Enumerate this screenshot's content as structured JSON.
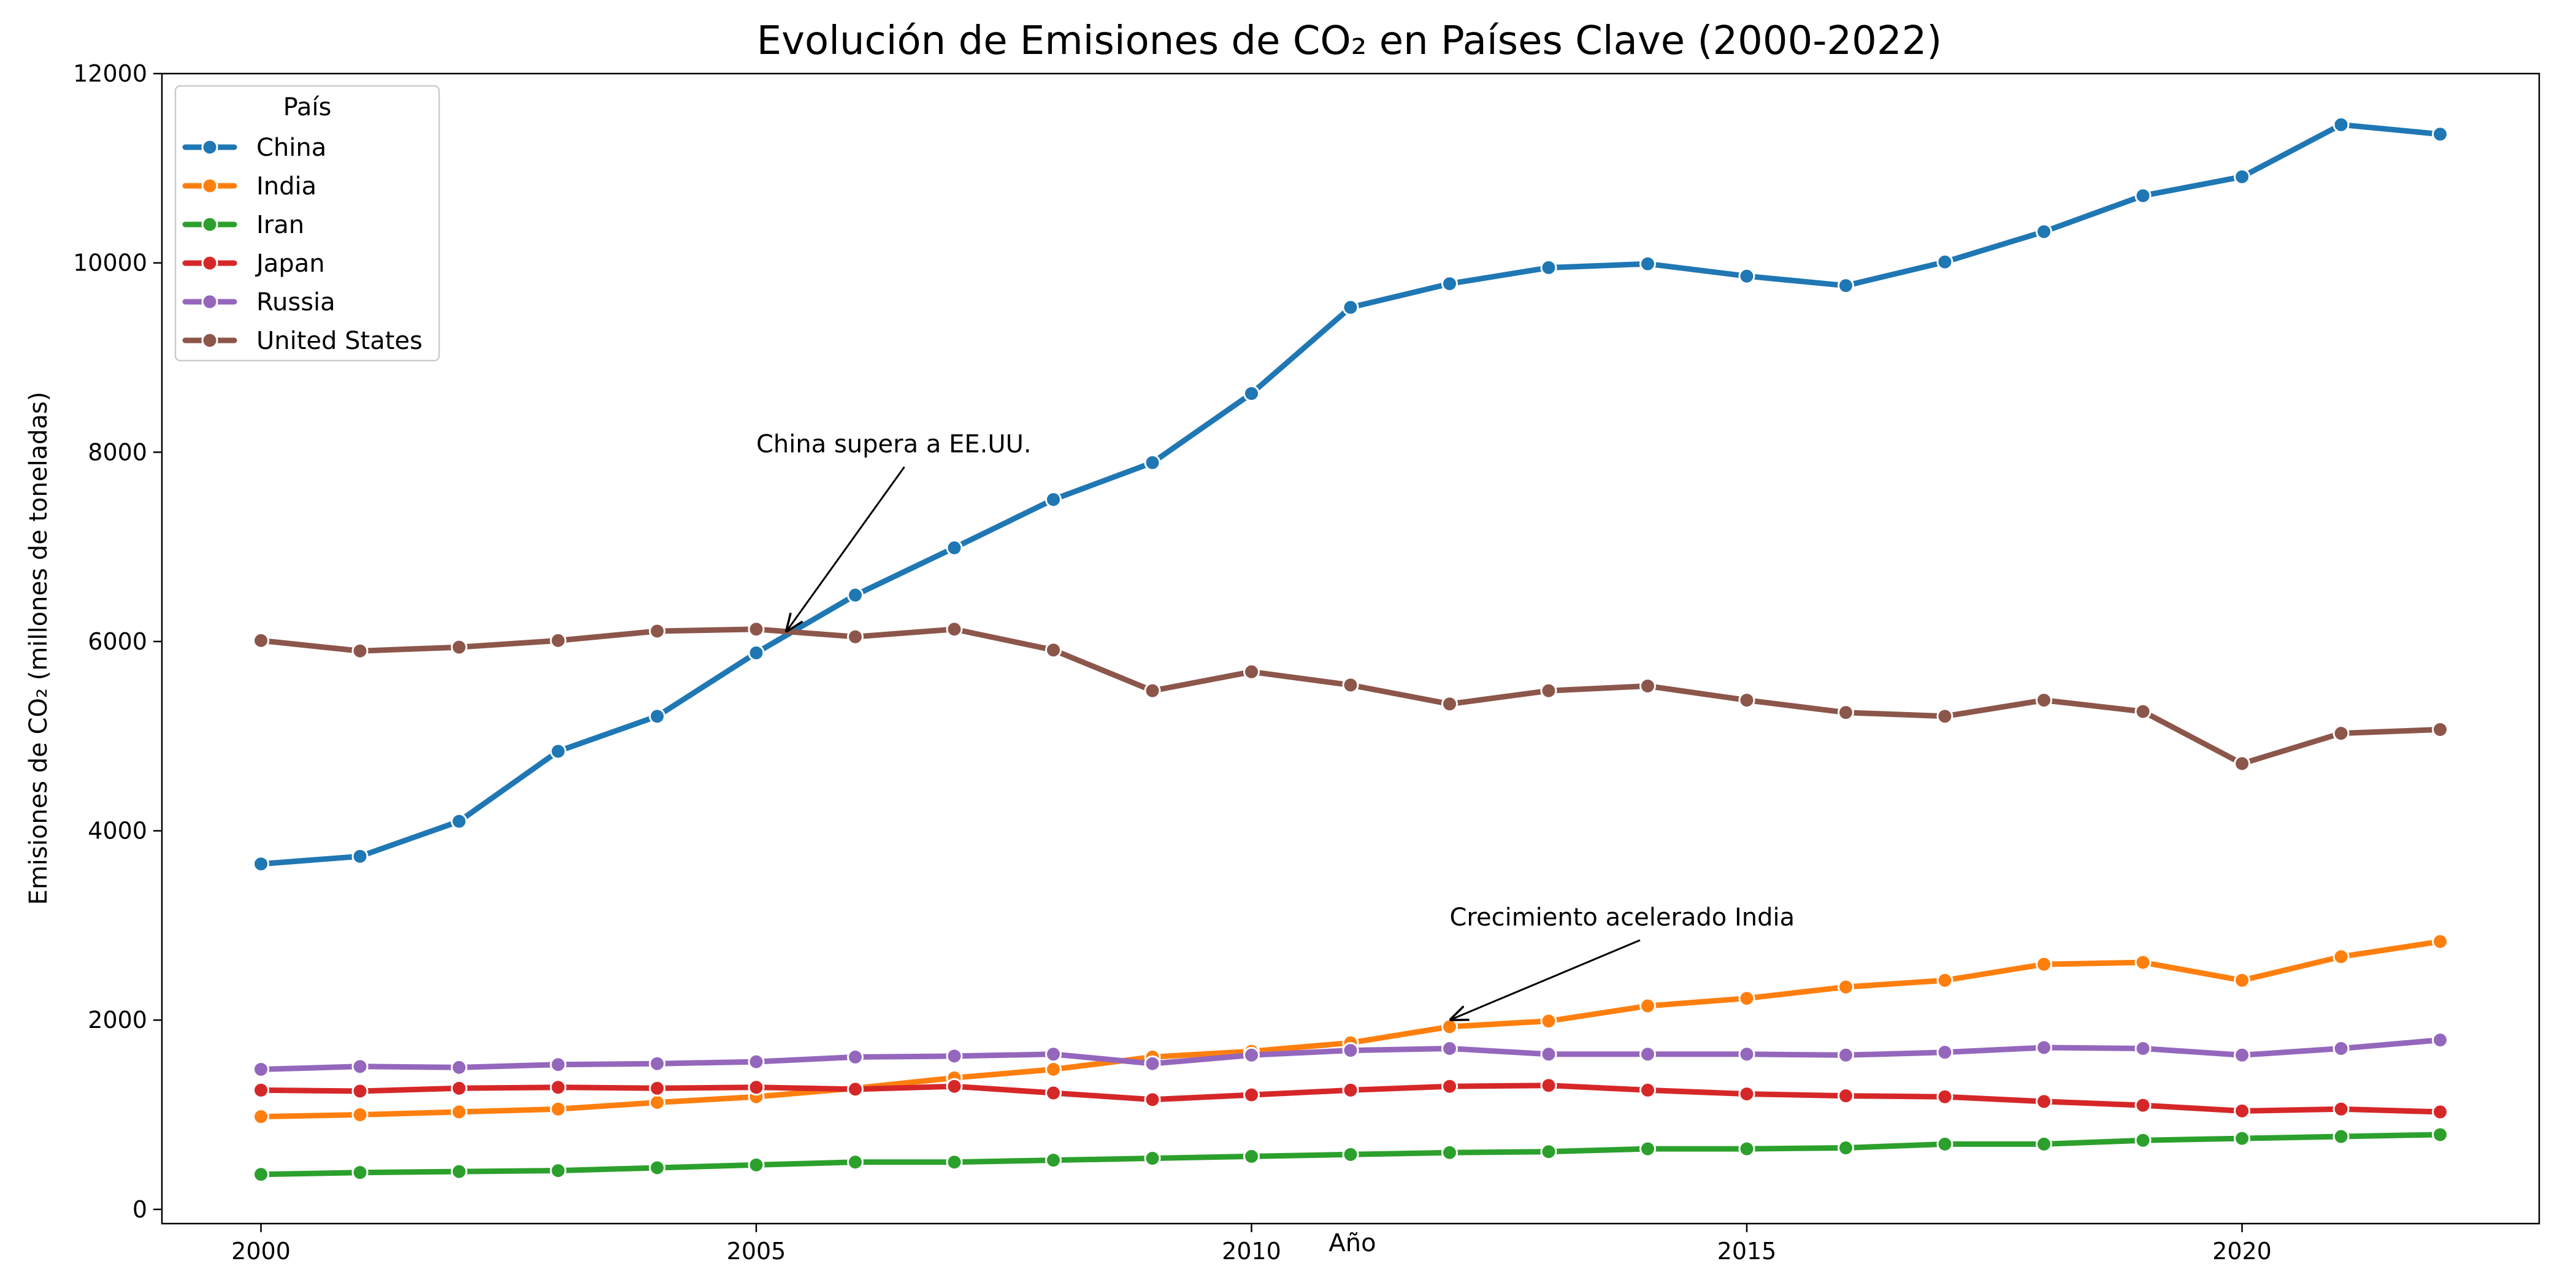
{
  "chart_data": {
    "type": "line",
    "title": "Evolución de Emisiones de CO₂ en Países Clave (2000-2022)",
    "xlabel": "Año",
    "ylabel": "Emisiones de CO₂ (millones de toneladas)",
    "xlim": [
      1999,
      2023
    ],
    "ylim": [
      -150,
      12000
    ],
    "xticks": [
      2000,
      2005,
      2010,
      2015,
      2020
    ],
    "yticks": [
      0,
      2000,
      4000,
      6000,
      8000,
      10000,
      12000
    ],
    "grid": false,
    "legend": {
      "title": "País",
      "placement": "top-left"
    },
    "x": [
      2000,
      2001,
      2002,
      2003,
      2004,
      2005,
      2006,
      2007,
      2008,
      2009,
      2010,
      2011,
      2012,
      2013,
      2014,
      2015,
      2016,
      2017,
      2018,
      2019,
      2020,
      2021,
      2022
    ],
    "series": [
      {
        "name": "China",
        "color": "#1f77b4",
        "values": [
          3650,
          3730,
          4100,
          4840,
          5210,
          5880,
          6490,
          6990,
          7500,
          7890,
          8620,
          9530,
          9780,
          9950,
          9990,
          9860,
          9760,
          10010,
          10330,
          10710,
          10910,
          11460,
          11360
        ]
      },
      {
        "name": "India",
        "color": "#ff7f0e",
        "values": [
          980,
          1000,
          1030,
          1060,
          1130,
          1190,
          1280,
          1390,
          1480,
          1610,
          1670,
          1760,
          1930,
          1990,
          2150,
          2230,
          2350,
          2420,
          2590,
          2610,
          2420,
          2670,
          2830
        ]
      },
      {
        "name": "Iran",
        "color": "#2ca02c",
        "values": [
          370,
          390,
          400,
          410,
          440,
          470,
          500,
          500,
          520,
          540,
          560,
          580,
          600,
          610,
          640,
          640,
          650,
          690,
          690,
          730,
          750,
          770,
          790
        ]
      },
      {
        "name": "Japan",
        "color": "#d62728",
        "values": [
          1260,
          1250,
          1280,
          1290,
          1280,
          1290,
          1270,
          1300,
          1230,
          1160,
          1210,
          1260,
          1300,
          1310,
          1260,
          1220,
          1200,
          1190,
          1140,
          1100,
          1040,
          1060,
          1030
        ]
      },
      {
        "name": "Russia",
        "color": "#9467bd",
        "values": [
          1480,
          1510,
          1500,
          1530,
          1540,
          1560,
          1610,
          1620,
          1640,
          1540,
          1630,
          1680,
          1700,
          1640,
          1640,
          1640,
          1630,
          1660,
          1710,
          1700,
          1630,
          1700,
          1790
        ]
      },
      {
        "name": "United States",
        "color": "#8c564b",
        "values": [
          6010,
          5900,
          5940,
          6010,
          6110,
          6130,
          6050,
          6130,
          5910,
          5480,
          5680,
          5540,
          5340,
          5480,
          5530,
          5380,
          5250,
          5210,
          5380,
          5260,
          4710,
          5030,
          5070
        ]
      }
    ],
    "annotations": [
      {
        "text": "China supera a EE.UU.",
        "point": [
          2005.3,
          6100
        ],
        "text_at": [
          2005,
          8000
        ]
      },
      {
        "text": "Crecimiento acelerado India",
        "point": [
          2012,
          2000
        ],
        "text_at": [
          2012,
          3000
        ]
      }
    ]
  }
}
